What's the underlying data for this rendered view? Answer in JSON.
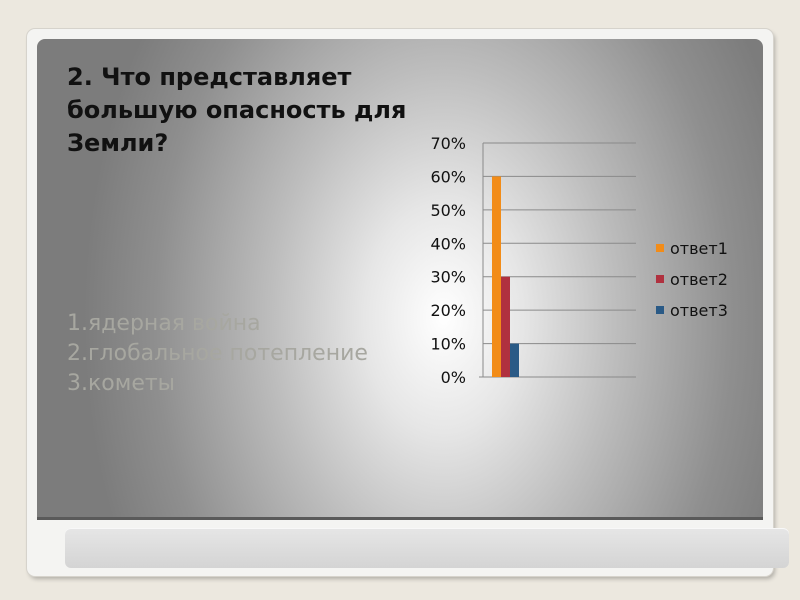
{
  "slide": {
    "title": "2. Что представляет большую опасность для Земли?",
    "answers": [
      "1.ядерная война",
      "2.глобальное потепление",
      "3.кометы"
    ]
  },
  "chart_data": {
    "type": "bar",
    "categories": [
      ""
    ],
    "series": [
      {
        "name": "ответ1",
        "values": [
          60
        ],
        "color": "#f28c18"
      },
      {
        "name": "ответ2",
        "values": [
          30
        ],
        "color": "#b0313f"
      },
      {
        "name": "ответ3",
        "values": [
          10
        ],
        "color": "#2a5a86"
      }
    ],
    "ylim": [
      0,
      70
    ],
    "yticks": [
      "0%",
      "10%",
      "20%",
      "30%",
      "40%",
      "50%",
      "60%",
      "70%"
    ],
    "grid": true,
    "legend": "right",
    "title": "",
    "xlabel": "",
    "ylabel": ""
  }
}
